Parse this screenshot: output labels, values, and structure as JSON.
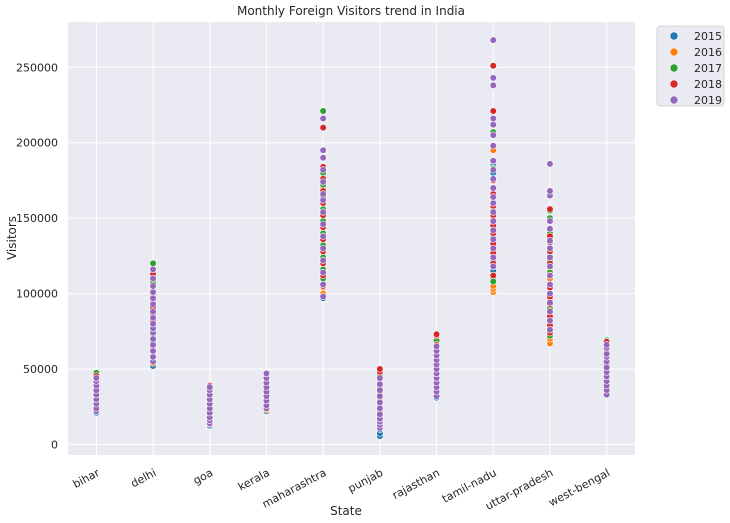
{
  "chart_data": {
    "type": "scatter",
    "title": "Monthly Foreign Visitors trend in India",
    "xlabel": "State",
    "ylabel": "Visitors",
    "categories": [
      "bihar",
      "delhi",
      "goa",
      "kerala",
      "maharashtra",
      "punjab",
      "rajasthan",
      "tamil-nadu",
      "uttar-pradesh",
      "west-bengal"
    ],
    "ylim": [
      -7000,
      280000
    ],
    "yticks": [
      0,
      50000,
      100000,
      150000,
      200000,
      250000
    ],
    "grid": true,
    "legend_position": "outside top-right",
    "colors": {
      "2015": "#1f77b4",
      "2016": "#ff7f0e",
      "2017": "#2ca02c",
      "2018": "#d62728",
      "2019": "#9467bd"
    },
    "series": [
      {
        "name": "2015",
        "values": {
          "bihar": [
            21000,
            23000,
            25000,
            27000,
            29000,
            31000,
            33000,
            36000,
            39000,
            42000
          ],
          "delhi": [
            52000,
            55000,
            58000,
            61000,
            65000,
            70000,
            75000,
            80000,
            85000,
            90000
          ],
          "goa": [
            12500,
            14000,
            16000,
            18000,
            21000,
            24000,
            27000,
            30000,
            33000,
            36000
          ],
          "kerala": [
            22000,
            24000,
            27000,
            30000,
            33000,
            36000,
            39000,
            42000,
            45000
          ],
          "maharashtra": [
            97000,
            100000,
            105000,
            112000,
            120000,
            128000,
            136000,
            144000,
            152000,
            160000,
            168000
          ],
          "punjab": [
            5500,
            7500,
            10000,
            13000,
            17000,
            21000,
            25000,
            30000,
            35000,
            40000
          ],
          "rajasthan": [
            31000,
            34000,
            37000,
            41000,
            45000,
            49000,
            53000,
            57000,
            61000
          ],
          "tamil-nadu": [
            110000,
            115000,
            122000,
            130000,
            140000,
            150000,
            160000,
            170000,
            180000,
            185000
          ],
          "uttar-pradesh": [
            70000,
            75000,
            82000,
            90000,
            98000,
            105000,
            112000,
            120000,
            125000
          ],
          "west-bengal": [
            33000,
            35000,
            38000,
            42000,
            46000,
            50000,
            54000,
            58000,
            62000
          ]
        }
      },
      {
        "name": "2016",
        "values": {
          "bihar": [
            22000,
            24000,
            26000,
            28000,
            31000,
            34000,
            37000,
            40000,
            43000
          ],
          "delhi": [
            54000,
            57000,
            60000,
            64000,
            68000,
            73000,
            78000,
            83000,
            88000,
            94000
          ],
          "goa": [
            13500,
            15000,
            17000,
            19000,
            22000,
            25000,
            28000,
            31000,
            34000,
            37000
          ],
          "kerala": [
            23000,
            25000,
            28000,
            31000,
            34000,
            37000,
            40000,
            43000,
            46000
          ],
          "maharashtra": [
            100000,
            104000,
            110000,
            116000,
            123000,
            130000,
            138000,
            145000,
            153000,
            160000,
            170000
          ],
          "punjab": [
            12000,
            14000,
            16000,
            18000,
            21000,
            25000,
            29000,
            33000,
            37000
          ],
          "rajasthan": [
            33000,
            36000,
            39000,
            43000,
            47000,
            51000,
            55000,
            59000
          ],
          "tamil-nadu": [
            101000,
            103000,
            105000,
            112000,
            118000,
            125000,
            133000,
            142000,
            150000,
            158000,
            175000,
            195000
          ],
          "uttar-pradesh": [
            67000,
            70000,
            73000,
            78000,
            84000,
            90000,
            96000,
            103000,
            110000,
            116000
          ],
          "west-bengal": [
            34000,
            36000,
            39000,
            43000,
            47000,
            51000,
            55000,
            59000
          ]
        }
      },
      {
        "name": "2017",
        "values": {
          "bihar": [
            25000,
            28000,
            31000,
            34000,
            37000,
            40000,
            43000,
            46000,
            47500
          ],
          "delhi": [
            57000,
            60000,
            64000,
            68000,
            73000,
            79000,
            85000,
            92000,
            100000,
            107000,
            115000,
            120000
          ],
          "goa": [
            15000,
            17000,
            19000,
            22000,
            25000,
            28000,
            31000,
            34000,
            37000
          ],
          "kerala": [
            25000,
            28000,
            31000,
            34000,
            37000,
            40000,
            43000,
            46000,
            47000
          ],
          "maharashtra": [
            110000,
            116000,
            124000,
            132000,
            140000,
            148000,
            156000,
            164000,
            172000,
            180000,
            190000,
            221000
          ],
          "punjab": [
            15000,
            17000,
            19000,
            22000,
            26000,
            30000,
            34000,
            38000,
            42000,
            46000
          ],
          "rajasthan": [
            36000,
            40000,
            44000,
            48000,
            52000,
            56000,
            60000,
            64000,
            69000
          ],
          "tamil-nadu": [
            108000,
            112000,
            120000,
            128000,
            137000,
            146000,
            155000,
            165000,
            175000,
            183000,
            207000
          ],
          "uttar-pradesh": [
            72000,
            78000,
            84000,
            90000,
            98000,
            106000,
            114000,
            122000,
            129000,
            140000,
            150000,
            155000
          ],
          "west-bengal": [
            36000,
            39000,
            42000,
            46000,
            50000,
            54000,
            58000,
            62000,
            66000,
            69000
          ]
        }
      },
      {
        "name": "2018",
        "values": {
          "bihar": [
            23000,
            25000,
            28000,
            31000,
            34000,
            37000,
            40000,
            43000,
            45500
          ],
          "delhi": [
            56000,
            59000,
            62000,
            65000,
            70000,
            76000,
            82000,
            86000,
            91000,
            96000,
            100000,
            113000
          ],
          "goa": [
            16000,
            18000,
            20000,
            23000,
            26000,
            29000,
            32000,
            35000,
            38000,
            39000
          ],
          "kerala": [
            24000,
            27000,
            30000,
            33000,
            36000,
            39000,
            42000,
            45000,
            46000
          ],
          "maharashtra": [
            105000,
            112000,
            120000,
            128000,
            136000,
            144000,
            152000,
            160000,
            168000,
            176000,
            184000,
            210000
          ],
          "punjab": [
            14000,
            16000,
            19000,
            23000,
            27000,
            31000,
            35000,
            39000,
            43000,
            48000,
            50000
          ],
          "rajasthan": [
            35000,
            38000,
            42000,
            46000,
            50000,
            54000,
            58000,
            62000,
            66000,
            72000,
            73000
          ],
          "tamil-nadu": [
            112000,
            120000,
            127000,
            133000,
            140000,
            145000,
            152000,
            158000,
            166000,
            175000,
            188000,
            221000,
            251000
          ],
          "uttar-pradesh": [
            74000,
            79000,
            85000,
            93000,
            98000,
            104000,
            112000,
            120000,
            128000,
            134000,
            138000,
            156000
          ],
          "west-bengal": [
            35000,
            38000,
            41000,
            45000,
            49000,
            53000,
            57000,
            61000,
            65000,
            68000
          ]
        }
      },
      {
        "name": "2019",
        "values": {
          "bihar": [
            22000,
            24000,
            27000,
            30000,
            33000,
            36000,
            39000,
            42000,
            44000
          ],
          "delhi": [
            55000,
            58000,
            62000,
            66000,
            70000,
            74000,
            77000,
            80000,
            84000,
            88000,
            93000,
            97000,
            101000,
            105000,
            110000,
            116000
          ],
          "goa": [
            14000,
            16000,
            18000,
            21000,
            24000,
            27000,
            30000,
            33000,
            36000,
            38000
          ],
          "kerala": [
            24000,
            26000,
            29000,
            32000,
            35000,
            38000,
            41000,
            44000,
            47000
          ],
          "maharashtra": [
            98000,
            106000,
            114000,
            122000,
            130000,
            138000,
            146000,
            154000,
            162000,
            166000,
            174000,
            182000,
            190000,
            195000,
            216000
          ],
          "punjab": [
            11000,
            13000,
            15000,
            17000,
            20000,
            24000,
            28000,
            32000,
            36000,
            40000,
            44000
          ],
          "rajasthan": [
            32000,
            35000,
            38000,
            41000,
            44000,
            47000,
            50000,
            53000,
            56000,
            59000,
            62000,
            65000
          ],
          "tamil-nadu": [
            118000,
            124000,
            130000,
            136000,
            142000,
            148000,
            154000,
            160000,
            164000,
            170000,
            176000,
            182000,
            188000,
            198000,
            205000,
            212000,
            216000,
            238000,
            243000,
            268000
          ],
          "uttar-pradesh": [
            76000,
            82000,
            88000,
            94000,
            100000,
            106000,
            112000,
            118000,
            124000,
            130000,
            135000,
            143000,
            148000,
            165000,
            168000,
            186000
          ],
          "west-bengal": [
            33000,
            36000,
            39000,
            42000,
            45000,
            48000,
            51000,
            55000,
            58000,
            60000,
            64000,
            66000
          ]
        }
      }
    ]
  }
}
